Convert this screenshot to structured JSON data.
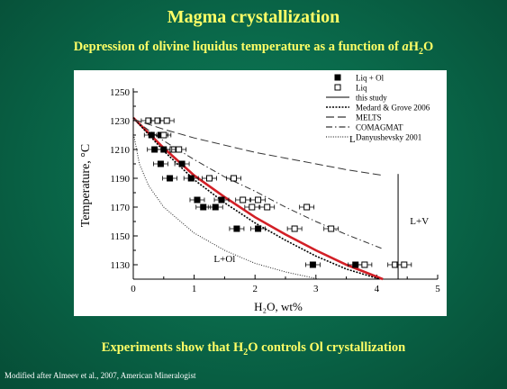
{
  "slide": {
    "title": "Magma crystallization",
    "subtitle_pre": "Depression of olivine liquidus temperature as a function of ",
    "subtitle_var": "a",
    "subtitle_h": "H",
    "subtitle_sub": "2",
    "subtitle_o": "O",
    "bottom_pre": "Experiments show that H",
    "bottom_sub": "2",
    "bottom_post": "O controls Ol crystallization",
    "credit": "Modified after Almeev et al., 2007, American Mineralogist"
  },
  "chart_data": {
    "type": "scatter",
    "xlabel": "H₂O, wt%",
    "ylabel": "Temperature, °C",
    "xlim": [
      0,
      5
    ],
    "ylim": [
      1120,
      1250
    ],
    "xticks": [
      0,
      1,
      2,
      3,
      4,
      5
    ],
    "yticks": [
      1130,
      1150,
      1170,
      1190,
      1210,
      1230,
      1250
    ],
    "region_labels": [
      "L",
      "L+V",
      "L+Ol"
    ],
    "series": [
      {
        "name": "Liq + Ol",
        "marker": "filled-square",
        "points": [
          [
            0.3,
            1220
          ],
          [
            0.45,
            1220
          ],
          [
            0.35,
            1210
          ],
          [
            0.5,
            1210
          ],
          [
            0.45,
            1200
          ],
          [
            0.8,
            1200
          ],
          [
            0.6,
            1190
          ],
          [
            0.95,
            1190
          ],
          [
            1.05,
            1175
          ],
          [
            1.45,
            1175
          ],
          [
            1.15,
            1170
          ],
          [
            1.35,
            1170
          ],
          [
            1.7,
            1155
          ],
          [
            2.05,
            1155
          ],
          [
            2.95,
            1130
          ],
          [
            3.65,
            1130
          ]
        ]
      },
      {
        "name": "Liq",
        "marker": "open-square",
        "points": [
          [
            0.25,
            1230
          ],
          [
            0.4,
            1230
          ],
          [
            0.55,
            1230
          ],
          [
            0.5,
            1220
          ],
          [
            0.65,
            1210
          ],
          [
            0.75,
            1210
          ],
          [
            1.25,
            1190
          ],
          [
            1.65,
            1190
          ],
          [
            1.8,
            1175
          ],
          [
            2.05,
            1175
          ],
          [
            1.95,
            1170
          ],
          [
            2.2,
            1170
          ],
          [
            2.65,
            1155
          ],
          [
            3.25,
            1155
          ],
          [
            2.85,
            1170
          ],
          [
            3.8,
            1130
          ],
          [
            4.3,
            1130
          ],
          [
            4.45,
            1130
          ]
        ]
      },
      {
        "name": "this study",
        "style": "solid-red",
        "x": [
          0,
          0.5,
          1,
          1.5,
          2,
          2.5,
          3,
          3.5,
          4.1
        ],
        "y": [
          1232,
          1211,
          1192,
          1177,
          1163,
          1151,
          1140,
          1130,
          1120
        ]
      },
      {
        "name": "Medard & Grove 2006",
        "style": "dotted-bold",
        "x": [
          0,
          0.5,
          1,
          1.5,
          2,
          2.5,
          3,
          3.5,
          4.05
        ],
        "y": [
          1232,
          1209,
          1189,
          1173,
          1159,
          1147,
          1136,
          1127,
          1120
        ]
      },
      {
        "name": "MELTS",
        "style": "long-dash",
        "x": [
          0,
          0.5,
          1,
          1.5,
          2,
          2.5,
          3,
          3.5,
          4.1
        ],
        "y": [
          1231,
          1224,
          1218,
          1213,
          1208,
          1204,
          1200,
          1196,
          1192
        ]
      },
      {
        "name": "COMAGMAT",
        "style": "dash-dot",
        "x": [
          0,
          0.5,
          1,
          1.5,
          2,
          2.5,
          3,
          3.5,
          4.1
        ],
        "y": [
          1231,
          1216,
          1203,
          1191,
          1181,
          1170,
          1160,
          1151,
          1141
        ]
      },
      {
        "name": "Danyushevsky 2001",
        "style": "fine-dotted",
        "x": [
          0,
          0.1,
          0.25,
          0.5,
          1,
          1.5,
          2,
          2.5,
          3.05
        ],
        "y": [
          1222,
          1200,
          1185,
          1170,
          1152,
          1140,
          1131,
          1125,
          1120
        ]
      },
      {
        "name": "L / L+V boundary",
        "style": "solid-thin",
        "x": [
          4.35,
          4.35
        ],
        "y": [
          1120,
          1193
        ]
      }
    ]
  }
}
